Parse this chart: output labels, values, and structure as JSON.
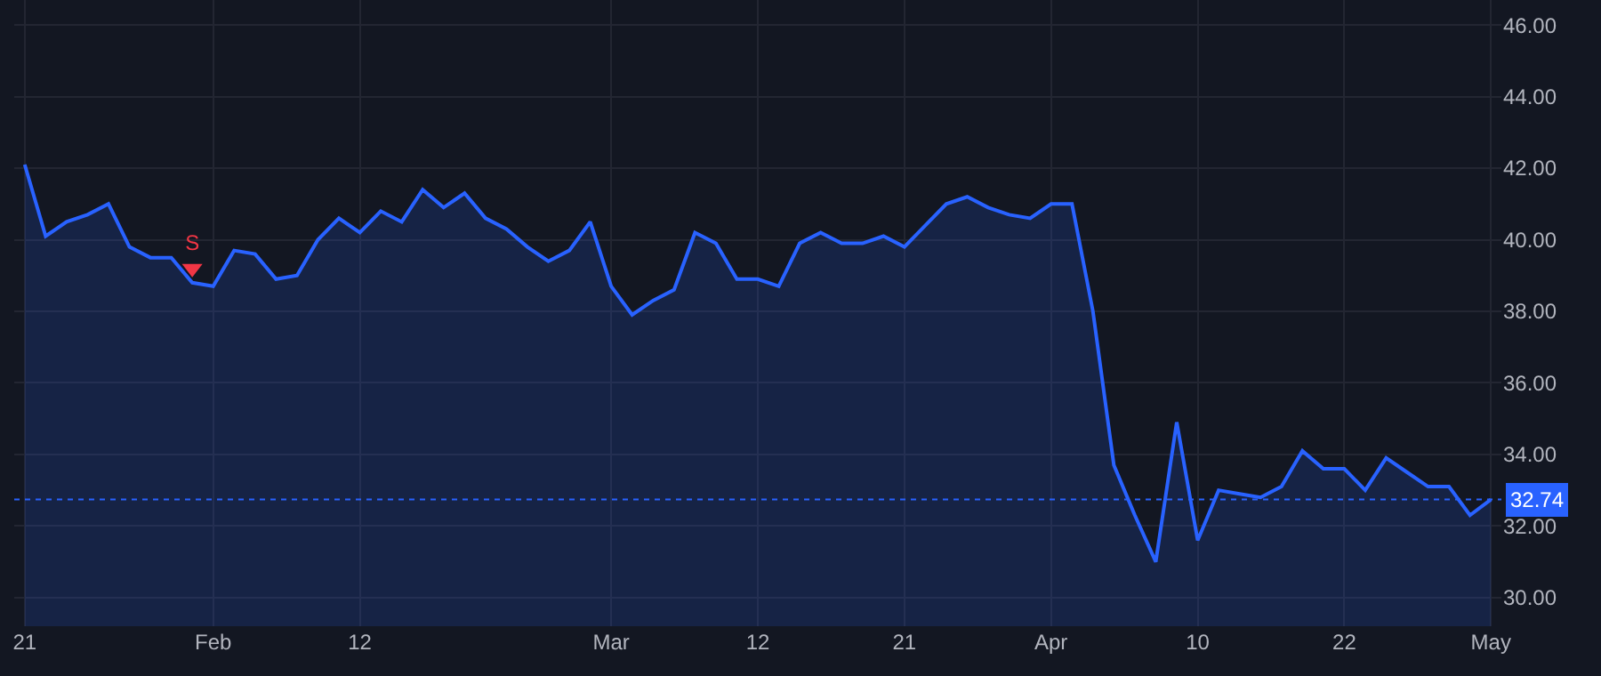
{
  "chart_data": {
    "type": "area",
    "categories": [
      "21",
      null,
      null,
      null,
      null,
      null,
      null,
      null,
      null,
      "Feb",
      null,
      null,
      null,
      null,
      null,
      null,
      "12",
      null,
      null,
      null,
      null,
      null,
      null,
      null,
      null,
      null,
      null,
      null,
      "Mar",
      null,
      null,
      null,
      null,
      null,
      null,
      "12",
      null,
      null,
      null,
      null,
      null,
      null,
      "21",
      null,
      null,
      null,
      null,
      null,
      null,
      "Apr",
      null,
      null,
      null,
      null,
      null,
      null,
      "10",
      null,
      null,
      null,
      null,
      null,
      null,
      "22",
      null,
      null,
      null,
      null,
      null,
      null,
      "May"
    ],
    "series": [
      {
        "color": "#2962ff",
        "values": [
          42.1,
          40.1,
          40.5,
          40.7,
          41.0,
          39.8,
          39.5,
          39.5,
          38.8,
          38.7,
          39.7,
          39.6,
          38.9,
          39.0,
          40.0,
          40.6,
          40.2,
          40.8,
          40.5,
          41.4,
          40.9,
          41.3,
          40.6,
          40.3,
          39.8,
          39.4,
          39.7,
          40.5,
          38.7,
          37.9,
          38.3,
          38.6,
          40.2,
          39.9,
          38.9,
          38.9,
          38.7,
          39.9,
          40.2,
          39.9,
          39.9,
          40.1,
          39.8,
          40.4,
          41.0,
          41.2,
          40.9,
          40.7,
          40.6,
          41.0,
          41.0,
          38.0,
          33.7,
          32.3,
          31.0,
          34.9,
          31.6,
          33.0,
          32.9,
          32.8,
          33.1,
          34.1,
          33.6,
          33.6,
          33.0,
          33.9,
          33.5,
          33.1,
          33.1,
          32.3,
          32.74
        ]
      },
      {
        "type": "scatter",
        "name": "S",
        "color": "#f23645",
        "marker": "triangle",
        "values": [
          null,
          null,
          null,
          null,
          null,
          null,
          null,
          null,
          39.2,
          null,
          null,
          null,
          null,
          null,
          null,
          null,
          null,
          null,
          null,
          null,
          null,
          null,
          null,
          null,
          null,
          null,
          null,
          null,
          null,
          null,
          null,
          null,
          null,
          null,
          null,
          null,
          null,
          null,
          null,
          null,
          null,
          null,
          null,
          null,
          null,
          null,
          null,
          null,
          null,
          null,
          null,
          null,
          null,
          null,
          null,
          null,
          null,
          null,
          null,
          null,
          null,
          null,
          null,
          null,
          null,
          null,
          null,
          null,
          null,
          null,
          null
        ]
      }
    ],
    "ylim": [
      29.2,
      46.7
    ],
    "yticks": [
      {
        "value": 30,
        "label": "30.00"
      },
      {
        "value": 32,
        "label": "32.00"
      },
      {
        "value": 34,
        "label": "34.00"
      },
      {
        "value": 36,
        "label": "36.00"
      },
      {
        "value": 38,
        "label": "38.00"
      },
      {
        "value": 40,
        "label": "40.00"
      },
      {
        "value": 42,
        "label": "42.00"
      },
      {
        "value": 44,
        "label": "44.00"
      },
      {
        "value": 46,
        "label": "46.00"
      }
    ],
    "ref_lines": [
      {
        "axis": "y",
        "value": 32.74,
        "label": "32.74",
        "color": "#2962ff",
        "line_style": "dotted"
      }
    ],
    "grid": true,
    "marker": "none",
    "line_style": "solid"
  }
}
